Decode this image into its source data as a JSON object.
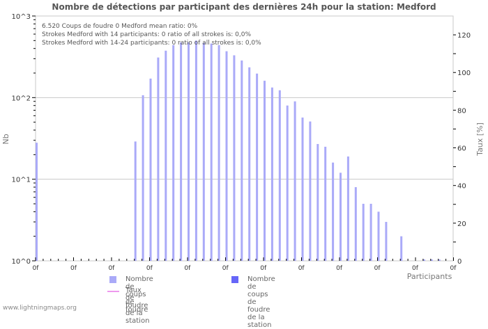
{
  "title": "Nombre de détections par participant des dernières 24h pour la station: Medford",
  "footer": "www.lightningmaps.org",
  "colors": {
    "bars_all": "#aaaaf8",
    "bars_station": "#6666f8",
    "station_rate_line": "#ee99ee",
    "grid": "#c8c8c8",
    "axis": "#c8c8c8",
    "text": "#666666"
  },
  "info_lines": [
    "6.520  Coups de foudre      0 Medford      mean ratio: 0%",
    "Strokes Medford with 14 participants: 0      ratio of all strokes is: 0,0%",
    "Strokes Medford with 14-24 participants: 0      ratio of all strokes is: 0,0%"
  ],
  "legend": {
    "all": "Nombre de coups de foudre",
    "station": "Nombre de coups de foudre de la station",
    "rate": "Taux de foudre de la station"
  },
  "chart_data": {
    "type": "bar",
    "title": "Nombre de détections par participant des dernières 24h pour la station: Medford",
    "xlabel": "Participants",
    "ylabel": "Nb",
    "y2label": "Taux [%]",
    "yscale": "log",
    "ylim": [
      1,
      1000
    ],
    "y_ticks": [
      "10^0",
      "10^1",
      "10^2",
      "10^3"
    ],
    "y2lim": [
      0,
      130
    ],
    "y2_ticks": [
      0,
      20,
      40,
      60,
      80,
      100,
      120
    ],
    "x_tick_labels": [
      "0f",
      "0f",
      "0f",
      "0f",
      "0f",
      "0f",
      "0f",
      "0f",
      "0f",
      "0f",
      "0f",
      "0f"
    ],
    "grid": true,
    "legend_position": "bottom",
    "x": [
      0,
      1,
      2,
      3,
      4,
      5,
      6,
      7,
      8,
      9,
      10,
      11,
      12,
      13,
      14,
      15,
      16,
      17,
      18,
      19,
      20,
      21,
      22,
      23,
      24,
      25,
      26,
      27,
      28,
      29,
      30,
      31,
      32,
      33,
      34,
      35,
      36,
      37,
      38,
      39,
      40,
      41,
      42,
      43,
      44,
      45,
      46,
      47,
      48,
      49,
      50,
      51,
      52,
      53,
      54,
      55
    ],
    "series": [
      {
        "name": "Nombre de coups de foudre",
        "values": [
          28,
          0,
          0,
          0,
          0,
          0,
          0,
          0,
          0,
          0,
          0,
          0,
          0,
          29,
          107,
          171,
          310,
          376,
          440,
          476,
          476,
          500,
          470,
          460,
          440,
          370,
          330,
          285,
          235,
          197,
          161,
          133,
          123,
          80,
          90,
          57,
          51,
          27,
          25,
          16,
          12,
          19,
          8,
          5,
          5,
          4,
          3,
          0,
          2,
          0,
          0,
          1,
          1,
          1,
          0,
          0
        ]
      },
      {
        "name": "Nombre de coups de foudre de la station",
        "values": [
          0,
          0,
          0,
          0,
          0,
          0,
          0,
          0,
          0,
          0,
          0,
          0,
          0,
          0,
          0,
          0,
          0,
          0,
          0,
          0,
          0,
          0,
          0,
          0,
          0,
          0,
          0,
          0,
          0,
          0,
          0,
          0,
          0,
          0,
          0,
          0,
          0,
          0,
          0,
          0,
          0,
          0,
          0,
          0,
          0,
          0,
          0,
          0,
          0,
          0,
          0,
          0,
          0,
          0,
          0,
          0
        ]
      },
      {
        "name": "Taux de foudre de la station",
        "values": []
      }
    ]
  }
}
